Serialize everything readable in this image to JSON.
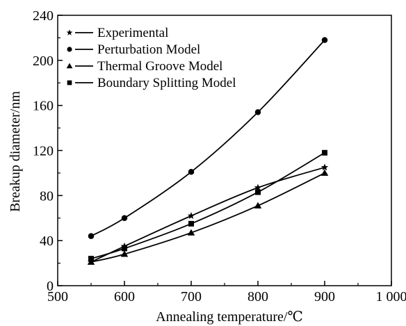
{
  "chart_data": {
    "type": "line",
    "xlabel": "Annealing temperature/℃",
    "ylabel": "Breakup diameter/nm",
    "xlim": [
      500,
      1000
    ],
    "ylim": [
      0,
      240
    ],
    "x_ticks": [
      "500",
      "600",
      "700",
      "800",
      "900",
      "1 000"
    ],
    "y_ticks": [
      "0",
      "40",
      "80",
      "120",
      "160",
      "200",
      "240"
    ],
    "grid": false,
    "legend_position": "top-left",
    "x": [
      550,
      600,
      700,
      800,
      900
    ],
    "series": [
      {
        "name": "Experimental",
        "marker": "star",
        "values": [
          21,
          35,
          62,
          87,
          105
        ]
      },
      {
        "name": "Perturbation Model",
        "marker": "circle",
        "values": [
          44,
          60,
          101,
          154,
          218
        ]
      },
      {
        "name": "Thermal Groove Model",
        "marker": "triangle",
        "values": [
          21,
          28,
          47,
          71,
          100
        ]
      },
      {
        "name": "Boundary Splitting Model",
        "marker": "square",
        "values": [
          24,
          33,
          55,
          83,
          118
        ]
      }
    ]
  }
}
